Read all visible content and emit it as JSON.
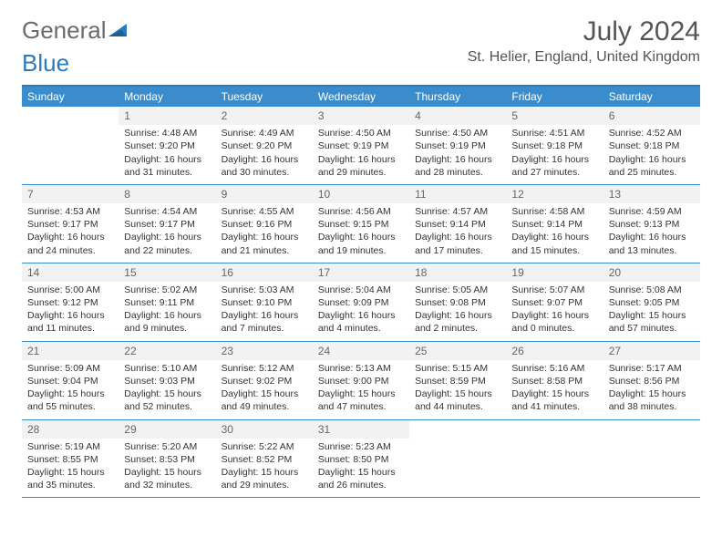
{
  "logo": {
    "text1": "General",
    "text2": "Blue"
  },
  "title": "July 2024",
  "location": "St. Helier, England, United Kingdom",
  "colors": {
    "header_bar": "#3a8ccc",
    "border": "#2b7bbf",
    "shaded_bg": "#f2f2f2",
    "text": "#333333",
    "title_text": "#555555"
  },
  "weekdays": [
    "Sunday",
    "Monday",
    "Tuesday",
    "Wednesday",
    "Thursday",
    "Friday",
    "Saturday"
  ],
  "weeks": [
    [
      {
        "num": "",
        "lines": []
      },
      {
        "num": "1",
        "lines": [
          "Sunrise: 4:48 AM",
          "Sunset: 9:20 PM",
          "Daylight: 16 hours and 31 minutes."
        ]
      },
      {
        "num": "2",
        "lines": [
          "Sunrise: 4:49 AM",
          "Sunset: 9:20 PM",
          "Daylight: 16 hours and 30 minutes."
        ]
      },
      {
        "num": "3",
        "lines": [
          "Sunrise: 4:50 AM",
          "Sunset: 9:19 PM",
          "Daylight: 16 hours and 29 minutes."
        ]
      },
      {
        "num": "4",
        "lines": [
          "Sunrise: 4:50 AM",
          "Sunset: 9:19 PM",
          "Daylight: 16 hours and 28 minutes."
        ]
      },
      {
        "num": "5",
        "lines": [
          "Sunrise: 4:51 AM",
          "Sunset: 9:18 PM",
          "Daylight: 16 hours and 27 minutes."
        ]
      },
      {
        "num": "6",
        "lines": [
          "Sunrise: 4:52 AM",
          "Sunset: 9:18 PM",
          "Daylight: 16 hours and 25 minutes."
        ]
      }
    ],
    [
      {
        "num": "7",
        "lines": [
          "Sunrise: 4:53 AM",
          "Sunset: 9:17 PM",
          "Daylight: 16 hours and 24 minutes."
        ]
      },
      {
        "num": "8",
        "lines": [
          "Sunrise: 4:54 AM",
          "Sunset: 9:17 PM",
          "Daylight: 16 hours and 22 minutes."
        ]
      },
      {
        "num": "9",
        "lines": [
          "Sunrise: 4:55 AM",
          "Sunset: 9:16 PM",
          "Daylight: 16 hours and 21 minutes."
        ]
      },
      {
        "num": "10",
        "lines": [
          "Sunrise: 4:56 AM",
          "Sunset: 9:15 PM",
          "Daylight: 16 hours and 19 minutes."
        ]
      },
      {
        "num": "11",
        "lines": [
          "Sunrise: 4:57 AM",
          "Sunset: 9:14 PM",
          "Daylight: 16 hours and 17 minutes."
        ]
      },
      {
        "num": "12",
        "lines": [
          "Sunrise: 4:58 AM",
          "Sunset: 9:14 PM",
          "Daylight: 16 hours and 15 minutes."
        ]
      },
      {
        "num": "13",
        "lines": [
          "Sunrise: 4:59 AM",
          "Sunset: 9:13 PM",
          "Daylight: 16 hours and 13 minutes."
        ]
      }
    ],
    [
      {
        "num": "14",
        "lines": [
          "Sunrise: 5:00 AM",
          "Sunset: 9:12 PM",
          "Daylight: 16 hours and 11 minutes."
        ]
      },
      {
        "num": "15",
        "lines": [
          "Sunrise: 5:02 AM",
          "Sunset: 9:11 PM",
          "Daylight: 16 hours and 9 minutes."
        ]
      },
      {
        "num": "16",
        "lines": [
          "Sunrise: 5:03 AM",
          "Sunset: 9:10 PM",
          "Daylight: 16 hours and 7 minutes."
        ]
      },
      {
        "num": "17",
        "lines": [
          "Sunrise: 5:04 AM",
          "Sunset: 9:09 PM",
          "Daylight: 16 hours and 4 minutes."
        ]
      },
      {
        "num": "18",
        "lines": [
          "Sunrise: 5:05 AM",
          "Sunset: 9:08 PM",
          "Daylight: 16 hours and 2 minutes."
        ]
      },
      {
        "num": "19",
        "lines": [
          "Sunrise: 5:07 AM",
          "Sunset: 9:07 PM",
          "Daylight: 16 hours and 0 minutes."
        ]
      },
      {
        "num": "20",
        "lines": [
          "Sunrise: 5:08 AM",
          "Sunset: 9:05 PM",
          "Daylight: 15 hours and 57 minutes."
        ]
      }
    ],
    [
      {
        "num": "21",
        "lines": [
          "Sunrise: 5:09 AM",
          "Sunset: 9:04 PM",
          "Daylight: 15 hours and 55 minutes."
        ]
      },
      {
        "num": "22",
        "lines": [
          "Sunrise: 5:10 AM",
          "Sunset: 9:03 PM",
          "Daylight: 15 hours and 52 minutes."
        ]
      },
      {
        "num": "23",
        "lines": [
          "Sunrise: 5:12 AM",
          "Sunset: 9:02 PM",
          "Daylight: 15 hours and 49 minutes."
        ]
      },
      {
        "num": "24",
        "lines": [
          "Sunrise: 5:13 AM",
          "Sunset: 9:00 PM",
          "Daylight: 15 hours and 47 minutes."
        ]
      },
      {
        "num": "25",
        "lines": [
          "Sunrise: 5:15 AM",
          "Sunset: 8:59 PM",
          "Daylight: 15 hours and 44 minutes."
        ]
      },
      {
        "num": "26",
        "lines": [
          "Sunrise: 5:16 AM",
          "Sunset: 8:58 PM",
          "Daylight: 15 hours and 41 minutes."
        ]
      },
      {
        "num": "27",
        "lines": [
          "Sunrise: 5:17 AM",
          "Sunset: 8:56 PM",
          "Daylight: 15 hours and 38 minutes."
        ]
      }
    ],
    [
      {
        "num": "28",
        "lines": [
          "Sunrise: 5:19 AM",
          "Sunset: 8:55 PM",
          "Daylight: 15 hours and 35 minutes."
        ]
      },
      {
        "num": "29",
        "lines": [
          "Sunrise: 5:20 AM",
          "Sunset: 8:53 PM",
          "Daylight: 15 hours and 32 minutes."
        ]
      },
      {
        "num": "30",
        "lines": [
          "Sunrise: 5:22 AM",
          "Sunset: 8:52 PM",
          "Daylight: 15 hours and 29 minutes."
        ]
      },
      {
        "num": "31",
        "lines": [
          "Sunrise: 5:23 AM",
          "Sunset: 8:50 PM",
          "Daylight: 15 hours and 26 minutes."
        ]
      },
      {
        "num": "",
        "lines": []
      },
      {
        "num": "",
        "lines": []
      },
      {
        "num": "",
        "lines": []
      }
    ]
  ]
}
